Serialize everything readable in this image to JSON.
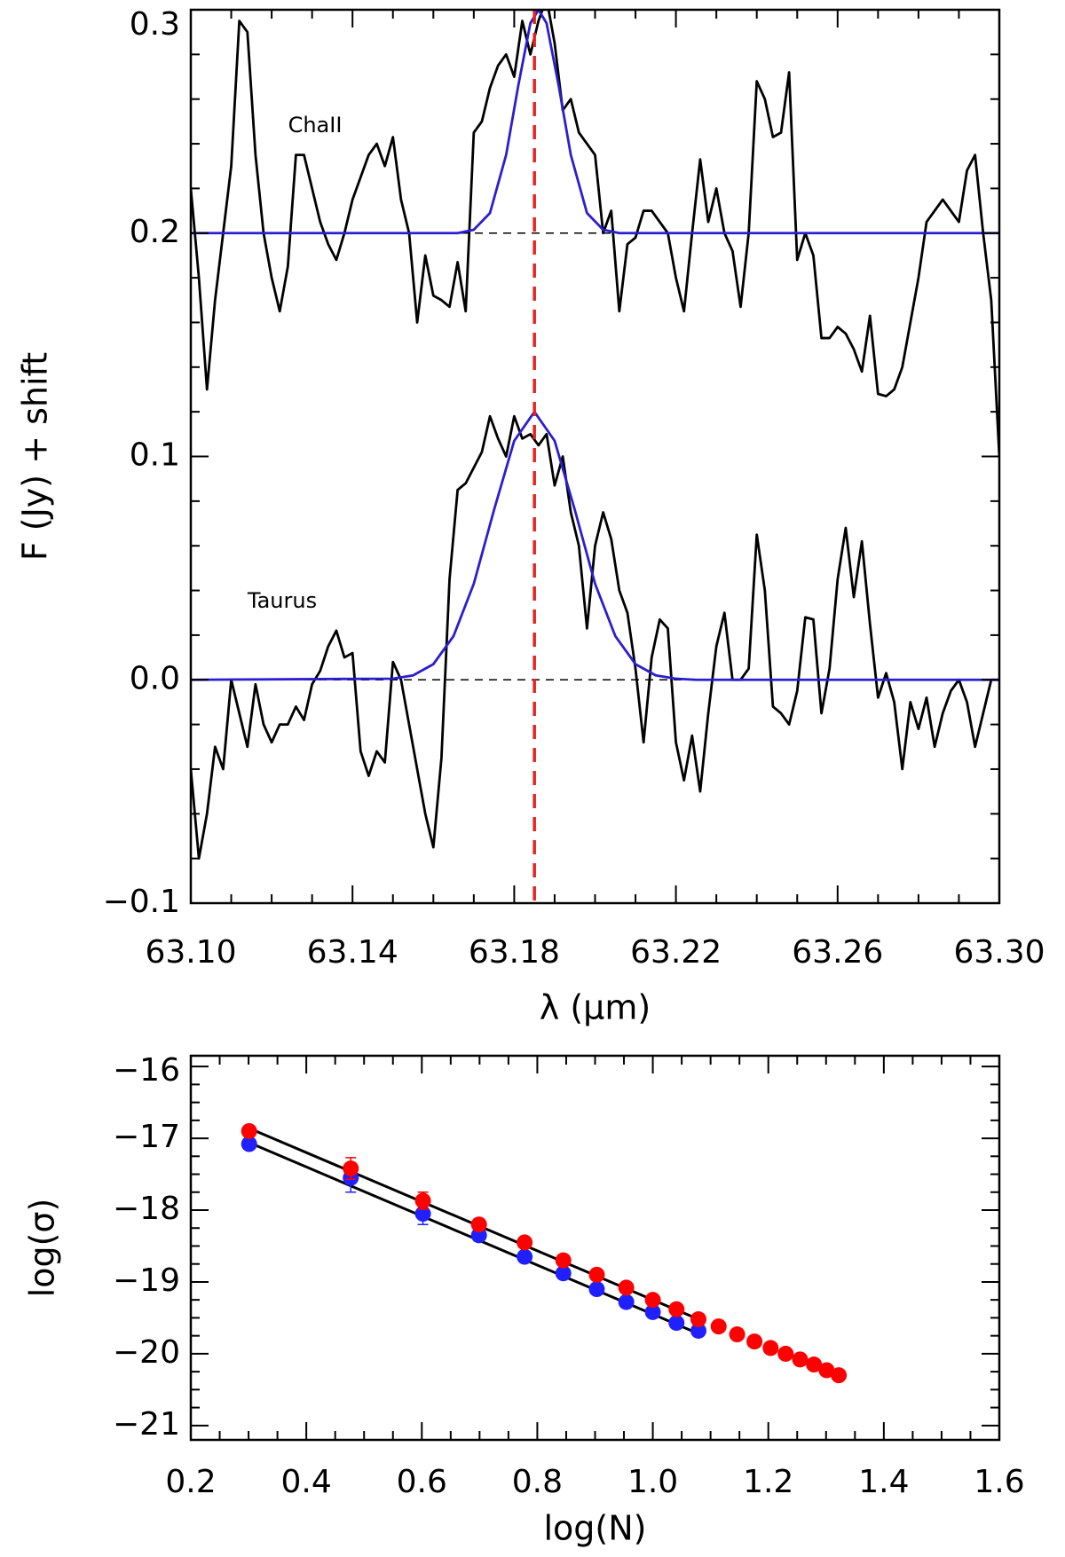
{
  "chart_data": [
    {
      "type": "line",
      "xlabel": "λ (μm)",
      "ylabel": "F (Jy) + shift",
      "xlim": [
        63.1,
        63.3
      ],
      "ylim": [
        -0.1,
        0.3
      ],
      "xticks": [
        {
          "value": 63.1,
          "label": "63.10"
        },
        63.14,
        63.18,
        63.22,
        63.26,
        {
          "value": 63.3,
          "label": "63.30"
        }
      ],
      "yticks": [
        {
          "value": -0.1,
          "label": "−0.1"
        },
        {
          "value": 0,
          "label": "0.0"
        },
        0.1,
        0.2,
        0.3
      ],
      "reference_line": {
        "value": 63.185,
        "color": "#e8221c"
      },
      "baselines": [
        0.2,
        0
      ],
      "x": [
        63.1,
        63.102,
        63.104,
        63.106,
        63.108,
        63.11,
        63.112,
        63.114,
        63.116,
        63.118,
        63.12,
        63.122,
        63.124,
        63.126,
        63.128,
        63.13,
        63.132,
        63.134,
        63.136,
        63.138,
        63.14,
        63.142,
        63.144,
        63.146,
        63.148,
        63.15,
        63.152,
        63.154,
        63.156,
        63.158,
        63.16,
        63.162,
        63.164,
        63.166,
        63.168,
        63.17,
        63.172,
        63.174,
        63.176,
        63.178,
        63.18,
        63.182,
        63.184,
        63.186,
        63.188,
        63.19,
        63.192,
        63.194,
        63.196,
        63.198,
        63.2,
        63.202,
        63.204,
        63.206,
        63.208,
        63.21,
        63.212,
        63.214,
        63.216,
        63.218,
        63.22,
        63.222,
        63.224,
        63.226,
        63.228,
        63.23,
        63.232,
        63.234,
        63.236,
        63.238,
        63.24,
        63.242,
        63.244,
        63.246,
        63.248,
        63.25,
        63.252,
        63.254,
        63.256,
        63.258,
        63.26,
        63.262,
        63.264,
        63.266,
        63.268,
        63.27,
        63.272,
        63.274,
        63.276,
        63.278,
        63.28,
        63.282,
        63.284,
        63.286,
        63.288,
        63.29,
        63.292,
        63.294,
        63.296,
        63.298,
        63.3
      ],
      "series": [
        {
          "name": "ChaII",
          "color": "#000000",
          "values": [
            0.22,
            0.18,
            0.13,
            0.17,
            0.2,
            0.23,
            0.295,
            0.29,
            0.235,
            0.2,
            0.18,
            0.165,
            0.185,
            0.235,
            0.235,
            0.22,
            0.205,
            0.195,
            0.188,
            0.2,
            0.215,
            0.225,
            0.235,
            0.24,
            0.23,
            0.243,
            0.215,
            0.2,
            0.16,
            0.19,
            0.172,
            0.17,
            0.167,
            0.187,
            0.165,
            0.245,
            0.25,
            0.265,
            0.275,
            0.28,
            0.27,
            0.295,
            0.28,
            0.295,
            0.305,
            0.285,
            0.255,
            0.26,
            0.245,
            0.24,
            0.235,
            0.2,
            0.21,
            0.165,
            0.195,
            0.198,
            0.21,
            0.21,
            0.205,
            0.2,
            0.18,
            0.165,
            0.2,
            0.233,
            0.205,
            0.22,
            0.2,
            0.192,
            0.167,
            0.2,
            0.268,
            0.26,
            0.243,
            0.245,
            0.272,
            0.188,
            0.2,
            0.19,
            0.153,
            0.153,
            0.158,
            0.155,
            0.148,
            0.138,
            0.163,
            0.128,
            0.127,
            0.13,
            0.14,
            0.16,
            0.18,
            0.205,
            0.21,
            0.215,
            0.21,
            0.205,
            0.228,
            0.235,
            0.2,
            0.17,
            0.1
          ]
        },
        {
          "name": "Taurus",
          "color": "#000000",
          "values": [
            -0.04,
            -0.08,
            -0.06,
            -0.03,
            -0.04,
            0,
            -0.015,
            -0.03,
            -0.002,
            -0.02,
            -0.028,
            -0.02,
            -0.02,
            -0.012,
            -0.018,
            -0.002,
            0.004,
            0.015,
            0.022,
            0.01,
            0.012,
            -0.032,
            -0.043,
            -0.032,
            -0.037,
            0.008,
            0,
            -0.02,
            -0.04,
            -0.06,
            -0.075,
            -0.035,
            0.045,
            0.085,
            0.088,
            0.095,
            0.102,
            0.118,
            0.108,
            0.1,
            0.118,
            0.108,
            0.11,
            0.105,
            0.11,
            0.087,
            0.1,
            0.075,
            0.06,
            0.023,
            0.06,
            0.075,
            0.063,
            0.04,
            0.03,
            0.005,
            -0.028,
            0.01,
            0.027,
            0.023,
            -0.028,
            -0.045,
            -0.025,
            -0.05,
            -0.015,
            0.015,
            0.03,
            0,
            0,
            0.005,
            0.065,
            0.04,
            -0.012,
            -0.015,
            -0.02,
            -0.005,
            0.028,
            0.027,
            -0.015,
            0.005,
            0.045,
            0.068,
            0.037,
            0.062,
            0.025,
            -0.008,
            0.003,
            -0.01,
            -0.04,
            -0.01,
            -0.022,
            -0.008,
            -0.03,
            -0.015,
            -0.005,
            0,
            -0.01,
            -0.03,
            -0.015,
            0,
            0
          ]
        },
        {
          "color": "#2a1fd0",
          "x": [
            63.1,
            63.166,
            63.17,
            63.174,
            63.178,
            63.181,
            63.184,
            63.186,
            63.188,
            63.191,
            63.194,
            63.198,
            63.202,
            63.206,
            63.3
          ],
          "values": [
            0.2,
            0.2,
            0.2015,
            0.209,
            0.235,
            0.266,
            0.294,
            0.3,
            0.294,
            0.266,
            0.235,
            0.209,
            0.2015,
            0.2,
            0.2
          ]
        },
        {
          "color": "#2a1fd0",
          "x": [
            63.1,
            63.15,
            63.155,
            63.16,
            63.165,
            63.17,
            63.175,
            63.18,
            63.185,
            63.19,
            63.195,
            63.2,
            63.205,
            63.21,
            63.215,
            63.22,
            63.225,
            63.23,
            63.3
          ],
          "values": [
            0,
            0.0005,
            0.002,
            0.007,
            0.0196,
            0.043,
            0.076,
            0.107,
            0.12,
            0.107,
            0.076,
            0.043,
            0.0196,
            0.007,
            0.002,
            0.0005,
            0,
            0,
            0
          ]
        }
      ]
    },
    {
      "type": "scatter",
      "xlabel": "log(N)",
      "ylabel": "log(σ)",
      "xlim": [
        0.2,
        1.6
      ],
      "ylim": [
        -21.2,
        -15.85
      ],
      "xticks": [
        0.2,
        0.4,
        0.6,
        0.8,
        {
          "value": 1,
          "label": "1.0"
        },
        1.2,
        1.4,
        1.6
      ],
      "yticks": [
        {
          "value": -16,
          "label": "−16"
        },
        {
          "value": -17,
          "label": "−17"
        },
        {
          "value": -18,
          "label": "−18"
        },
        {
          "value": -19,
          "label": "−19"
        },
        {
          "value": -20,
          "label": "−20"
        },
        {
          "value": -21,
          "label": "−21"
        }
      ],
      "lines": [
        {
          "color": "#000000",
          "x": [
            0.301,
            1.079
          ],
          "values": [
            -16.86,
            -19.52
          ]
        },
        {
          "color": "#000000",
          "x": [
            0.301,
            1.079
          ],
          "values": [
            -17.06,
            -19.72
          ]
        }
      ],
      "series": [
        {
          "color": "#2020ff",
          "x": [
            0.301,
            0.477,
            0.602,
            0.699,
            0.778,
            0.845,
            0.903,
            0.954,
            1.0,
            1.041,
            1.079
          ],
          "values": [
            -17.08,
            -17.55,
            -18.05,
            -18.35,
            -18.65,
            -18.88,
            -19.1,
            -19.28,
            -19.42,
            -19.57,
            -19.68
          ],
          "errors": [
            0.03,
            0.2,
            0.15,
            0.08,
            0.04,
            0.03,
            0.03,
            0.03,
            0.03,
            0.03,
            0.03
          ]
        },
        {
          "color": "#ff0000",
          "x": [
            0.301,
            0.477,
            0.602,
            0.699,
            0.778,
            0.845,
            0.903,
            0.954,
            1.0,
            1.041,
            1.079,
            1.114,
            1.146,
            1.176,
            1.204,
            1.23,
            1.255,
            1.279,
            1.301,
            1.322
          ],
          "values": [
            -16.9,
            -17.42,
            -17.87,
            -18.2,
            -18.45,
            -18.7,
            -18.9,
            -19.08,
            -19.25,
            -19.38,
            -19.52,
            -19.62,
            -19.73,
            -19.83,
            -19.92,
            -20.0,
            -20.08,
            -20.15,
            -20.23,
            -20.3
          ],
          "errors": [
            0.02,
            0.15,
            0.12,
            0.08,
            0.04,
            0.06,
            0.03,
            0.03,
            0.03,
            0.03,
            0.03,
            0.02,
            0.02,
            0.02,
            0.02,
            0.02,
            0.02,
            0.02,
            0.02,
            0.02
          ]
        }
      ]
    }
  ]
}
